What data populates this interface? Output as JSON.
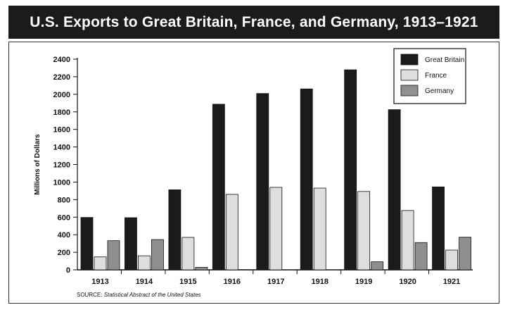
{
  "chart_data": {
    "type": "bar",
    "title": "U.S. Exports to Great Britain, France, and Germany, 1913–1921",
    "xlabel": "",
    "ylabel": "Millions of Dollars",
    "ylim": [
      0,
      2400
    ],
    "yticks": [
      0,
      200,
      400,
      600,
      800,
      1000,
      1200,
      1400,
      1600,
      1800,
      2000,
      2200,
      2400
    ],
    "categories": [
      "1913",
      "1914",
      "1915",
      "1916",
      "1917",
      "1918",
      "1919",
      "1920",
      "1921"
    ],
    "series": [
      {
        "name": "Great Britain",
        "color": "#1b1b1b",
        "values": [
          597,
          594,
          912,
          1887,
          2009,
          2061,
          2279,
          1825,
          945
        ]
      },
      {
        "name": "France",
        "color": "#dedede",
        "values": [
          147,
          160,
          370,
          860,
          940,
          931,
          893,
          676,
          225
        ]
      },
      {
        "name": "Germany",
        "color": "#8f8f8f",
        "values": [
          332,
          345,
          29,
          2,
          0,
          0,
          92,
          311,
          372
        ]
      }
    ],
    "legend_position": "top-right",
    "grid": false,
    "source_label": "SOURCE:",
    "source_text": "Statistical Abstract of the United States"
  }
}
